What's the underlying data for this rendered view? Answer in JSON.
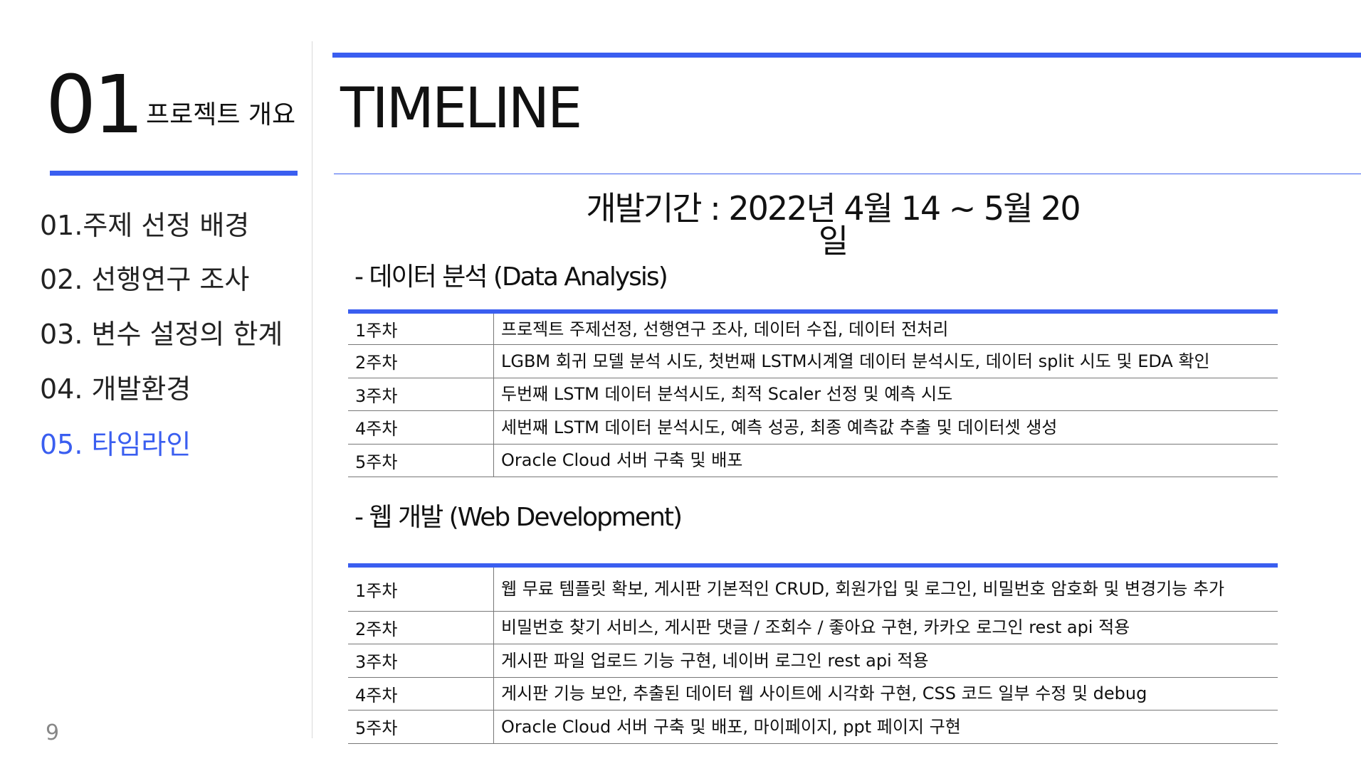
{
  "sidebar": {
    "section_number": "01",
    "section_title": "프로젝트 개요",
    "items": [
      {
        "label": "01.주제 선정 배경",
        "active": false
      },
      {
        "label": "02. 선행연구 조사",
        "active": false
      },
      {
        "label": "03. 변수 설정의 한계",
        "active": false
      },
      {
        "label": "04. 개발환경",
        "active": false
      },
      {
        "label": "05. 타임라인",
        "active": true
      }
    ],
    "page_number": "9"
  },
  "main": {
    "title": "TIMELINE",
    "period": "개발기간 : 2022년 4월 14 ~ 5월 20일",
    "data_analysis": {
      "heading": "- 데이터 분석 (Data Analysis)",
      "rows": [
        {
          "week": "1주차",
          "task": "프로젝트 주제선정, 선행연구 조사, 데이터 수집, 데이터 전처리"
        },
        {
          "week": "2주차",
          "task": "LGBM 회귀 모델 분석 시도, 첫번째 LSTM시계열 데이터 분석시도, 데이터 split 시도 및 EDA 확인"
        },
        {
          "week": "3주차",
          "task": "두번째 LSTM 데이터 분석시도, 최적 Scaler 선정 및 예측 시도"
        },
        {
          "week": "4주차",
          "task": "세번째 LSTM 데이터 분석시도, 예측 성공, 최종 예측값 추출 및 데이터셋 생성"
        },
        {
          "week": "5주차",
          "task": "Oracle Cloud 서버 구축 및 배포"
        }
      ]
    },
    "web_development": {
      "heading": "- 웹 개발 (Web Development)",
      "rows": [
        {
          "week": "1주차",
          "task": "웹 무료 템플릿 확보, 게시판 기본적인 CRUD, 회원가입 및 로그인, 비밀번호 암호화 및 변경기능 추가"
        },
        {
          "week": "2주차",
          "task": "비밀번호 찾기 서비스, 게시판 댓글 / 조회수 / 좋아요 구현, 카카오 로그인 rest api 적용"
        },
        {
          "week": "3주차",
          "task": "게시판 파일 업로드 기능 구현, 네이버 로그인 rest api 적용"
        },
        {
          "week": "4주차",
          "task": "게시판 기능 보안, 추출된 데이터 웹 사이트에 시각화 구현, CSS 코드 일부 수정 및 debug"
        },
        {
          "week": "5주차",
          "task": "Oracle Cloud 서버 구축 및 배포, 마이페이지, ppt 페이지 구현"
        }
      ]
    }
  },
  "colors": {
    "accent": "#3a5ef0",
    "text": "#111111",
    "page_number": "#888888",
    "rule": "#777777"
  }
}
